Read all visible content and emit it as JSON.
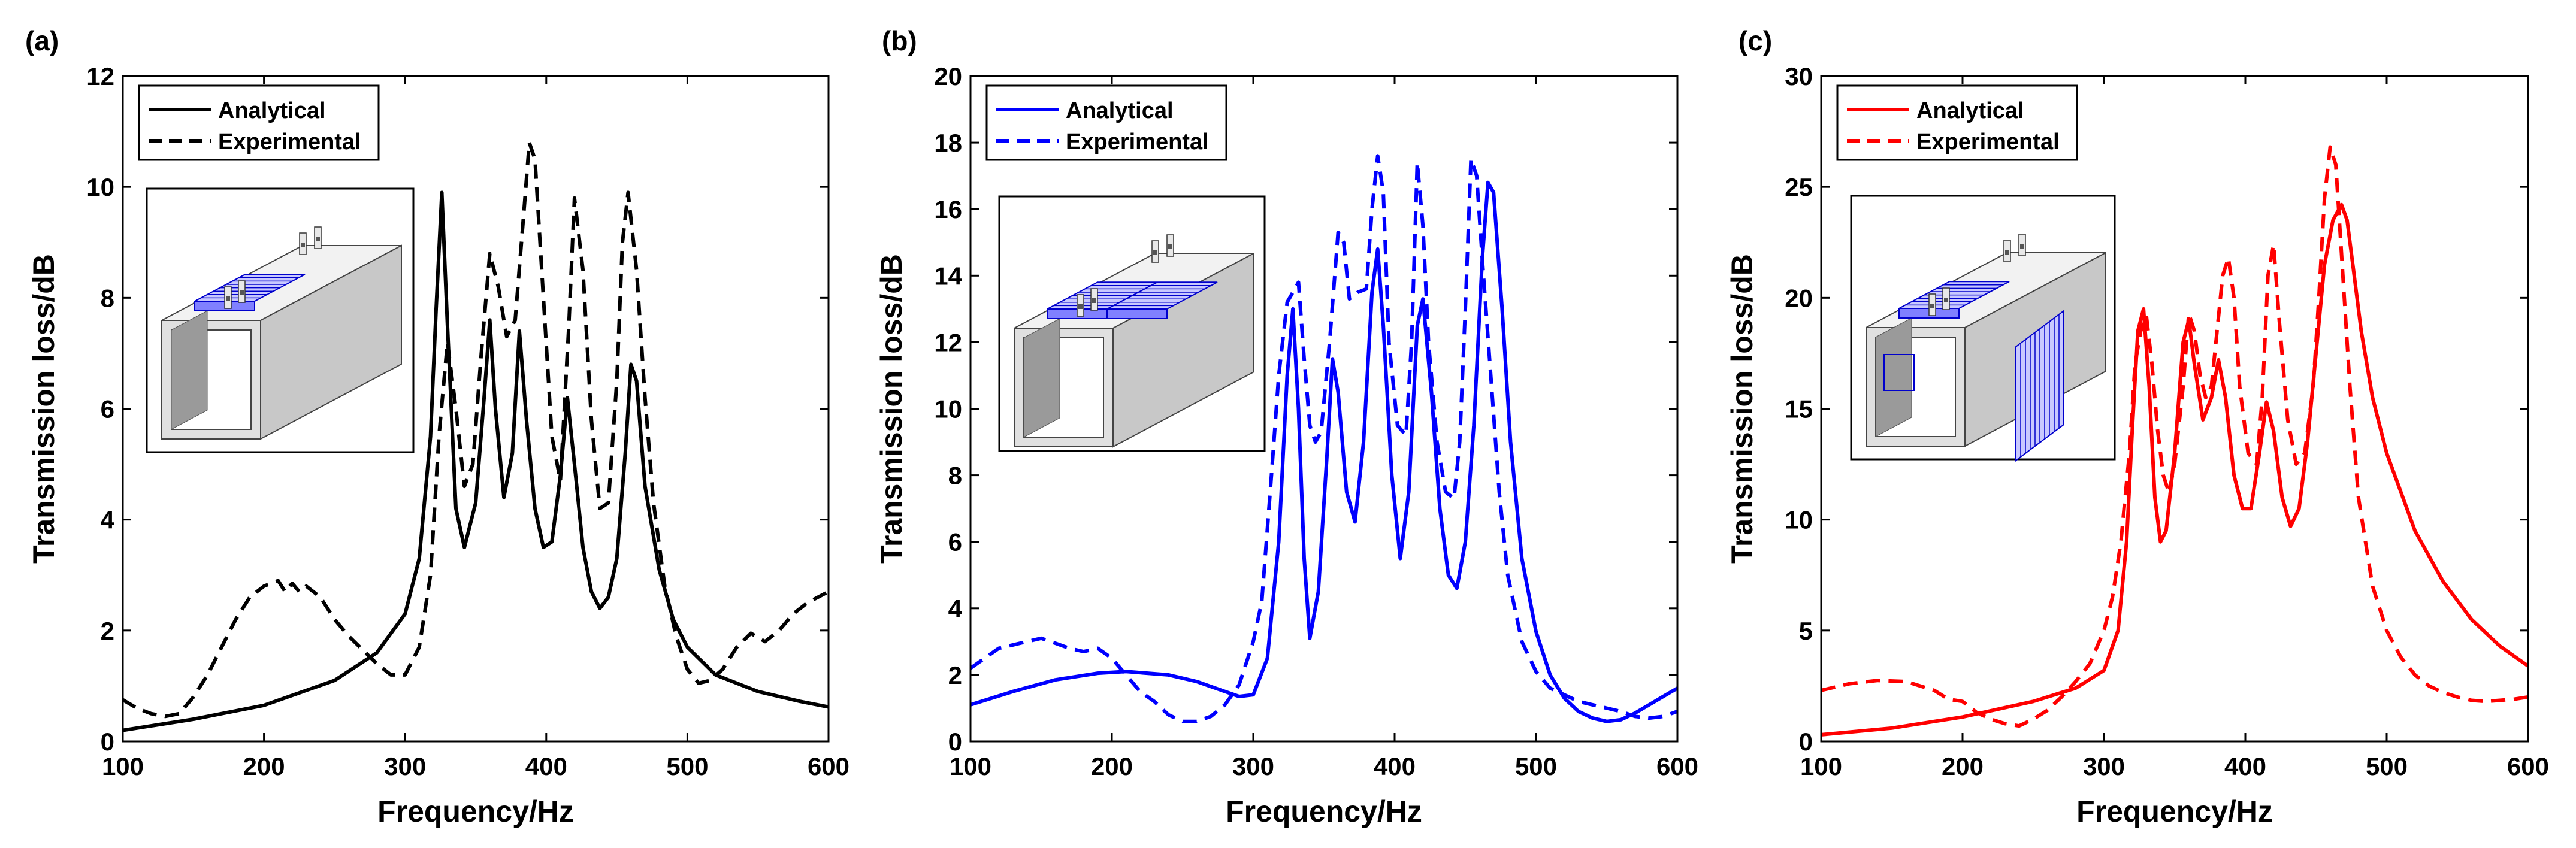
{
  "figure": {
    "panels": [
      "(a)",
      "(b)",
      "(c)"
    ]
  },
  "chart_data": [
    {
      "type": "line",
      "panel_label": "(a)",
      "color": "#000000",
      "xlabel": "Frequency/Hz",
      "ylabel": "Transmission loss/dB",
      "xlim": [
        100,
        600
      ],
      "ylim": [
        0,
        12
      ],
      "xticks": [
        100,
        200,
        300,
        400,
        500,
        600
      ],
      "yticks": [
        0,
        2,
        4,
        6,
        8,
        10,
        12
      ],
      "legend": {
        "position": "top-left",
        "entries": [
          "Analytical",
          "Experimental"
        ]
      },
      "inset": "duct with one resonator panel on top",
      "series": [
        {
          "name": "Analytical",
          "style": "solid",
          "x": [
            100,
            150,
            200,
            250,
            280,
            300,
            310,
            318,
            322,
            326,
            330,
            336,
            342,
            350,
            356,
            360,
            364,
            370,
            376,
            381,
            386,
            392,
            398,
            404,
            410,
            415,
            420,
            426,
            432,
            438,
            444,
            450,
            456,
            460,
            464,
            470,
            480,
            490,
            500,
            520,
            550,
            580,
            600
          ],
          "y": [
            0.2,
            0.4,
            0.65,
            1.1,
            1.6,
            2.3,
            3.3,
            5.5,
            7.8,
            9.9,
            7.5,
            4.2,
            3.5,
            4.3,
            6.2,
            7.6,
            6.0,
            4.4,
            5.2,
            7.4,
            5.8,
            4.2,
            3.5,
            3.6,
            4.8,
            6.2,
            5.0,
            3.5,
            2.7,
            2.4,
            2.6,
            3.3,
            5.2,
            6.8,
            6.5,
            4.6,
            3.1,
            2.2,
            1.7,
            1.2,
            0.9,
            0.72,
            0.62
          ]
        },
        {
          "name": "Experimental",
          "style": "dashed",
          "x": [
            100,
            110,
            120,
            130,
            140,
            150,
            160,
            170,
            180,
            190,
            200,
            210,
            215,
            220,
            225,
            230,
            240,
            250,
            260,
            270,
            280,
            290,
            300,
            310,
            318,
            324,
            330,
            336,
            342,
            348,
            354,
            360,
            366,
            372,
            378,
            384,
            388,
            392,
            398,
            404,
            410,
            416,
            420,
            426,
            432,
            438,
            444,
            450,
            454,
            458,
            464,
            470,
            476,
            484,
            492,
            500,
            508,
            516,
            525,
            535,
            545,
            555,
            565,
            575,
            585,
            600
          ],
          "y": [
            0.75,
            0.6,
            0.5,
            0.45,
            0.5,
            0.8,
            1.2,
            1.7,
            2.2,
            2.6,
            2.8,
            2.9,
            2.7,
            2.85,
            2.7,
            2.8,
            2.6,
            2.2,
            1.9,
            1.65,
            1.4,
            1.2,
            1.2,
            1.7,
            3.0,
            5.5,
            7.2,
            6.0,
            4.6,
            5.0,
            7.0,
            8.8,
            8.2,
            7.3,
            7.6,
            9.5,
            10.8,
            10.5,
            8.0,
            5.5,
            4.7,
            7.5,
            9.8,
            8.5,
            5.8,
            4.2,
            4.3,
            6.5,
            9.0,
            9.9,
            8.5,
            6.2,
            4.3,
            2.8,
            1.9,
            1.3,
            1.05,
            1.1,
            1.3,
            1.7,
            1.95,
            1.8,
            2.0,
            2.3,
            2.5,
            2.7
          ]
        }
      ]
    },
    {
      "type": "line",
      "panel_label": "(b)",
      "color": "#0000ff",
      "xlabel": "Frequency/Hz",
      "ylabel": "Transmission loss/dB",
      "xlim": [
        100,
        600
      ],
      "ylim": [
        0,
        20
      ],
      "xticks": [
        100,
        200,
        300,
        400,
        500,
        600
      ],
      "yticks": [
        0,
        2,
        4,
        6,
        8,
        10,
        12,
        14,
        16,
        18,
        20
      ],
      "legend": {
        "position": "top-left",
        "entries": [
          "Analytical",
          "Experimental"
        ]
      },
      "inset": "duct with two resonator panels on top",
      "series": [
        {
          "name": "Analytical",
          "style": "solid",
          "x": [
            100,
            130,
            160,
            190,
            210,
            240,
            260,
            280,
            290,
            300,
            310,
            318,
            324,
            328,
            332,
            336,
            340,
            346,
            352,
            356,
            360,
            366,
            372,
            378,
            384,
            388,
            392,
            398,
            404,
            410,
            416,
            420,
            426,
            432,
            438,
            444,
            450,
            456,
            462,
            466,
            470,
            476,
            482,
            490,
            500,
            510,
            520,
            530,
            540,
            550,
            560,
            570,
            580,
            590,
            600
          ],
          "y": [
            1.1,
            1.5,
            1.85,
            2.05,
            2.1,
            2.0,
            1.8,
            1.5,
            1.35,
            1.4,
            2.5,
            6.0,
            11.0,
            13.0,
            10.0,
            5.5,
            3.1,
            4.5,
            8.5,
            11.5,
            10.5,
            7.5,
            6.6,
            9.0,
            13.5,
            14.8,
            12.5,
            8.0,
            5.5,
            7.5,
            12.5,
            13.3,
            10.5,
            7.0,
            5.0,
            4.6,
            6.0,
            9.5,
            14.5,
            16.8,
            16.5,
            13.0,
            9.0,
            5.5,
            3.3,
            2.0,
            1.3,
            0.9,
            0.7,
            0.6,
            0.65,
            0.85,
            1.1,
            1.35,
            1.6
          ]
        },
        {
          "name": "Experimental",
          "style": "dashed",
          "x": [
            100,
            110,
            120,
            130,
            140,
            150,
            160,
            170,
            180,
            190,
            200,
            210,
            220,
            230,
            240,
            250,
            260,
            270,
            280,
            290,
            300,
            306,
            312,
            318,
            324,
            328,
            332,
            336,
            340,
            344,
            348,
            354,
            360,
            364,
            368,
            374,
            380,
            384,
            388,
            392,
            396,
            402,
            408,
            412,
            416,
            420,
            424,
            430,
            436,
            442,
            446,
            450,
            454,
            458,
            462,
            468,
            474,
            480,
            490,
            500,
            510,
            520,
            530,
            540,
            550,
            560,
            570,
            580,
            590,
            600
          ],
          "y": [
            2.2,
            2.5,
            2.8,
            2.9,
            3.0,
            3.1,
            2.95,
            2.8,
            2.7,
            2.8,
            2.5,
            2.0,
            1.5,
            1.2,
            0.8,
            0.6,
            0.6,
            0.75,
            1.1,
            1.7,
            3.0,
            4.2,
            7.5,
            11.0,
            13.2,
            13.5,
            13.8,
            11.5,
            9.5,
            9.0,
            9.3,
            12.0,
            15.3,
            15.0,
            13.3,
            13.5,
            13.6,
            16.0,
            17.6,
            16.5,
            12.0,
            9.5,
            9.2,
            12.0,
            17.4,
            15.5,
            12.0,
            9.0,
            7.5,
            7.3,
            9.0,
            13.0,
            17.5,
            17.0,
            14.5,
            11.0,
            7.5,
            5.0,
            3.0,
            2.1,
            1.6,
            1.4,
            1.2,
            1.1,
            1.0,
            0.9,
            0.75,
            0.7,
            0.75,
            0.9
          ]
        }
      ]
    },
    {
      "type": "line",
      "panel_label": "(c)",
      "color": "#ff0000",
      "xlabel": "Frequency/Hz",
      "ylabel": "Transmission loss/dB",
      "xlim": [
        100,
        600
      ],
      "ylim": [
        0,
        30
      ],
      "xticks": [
        100,
        200,
        300,
        400,
        500,
        600
      ],
      "yticks": [
        0,
        5,
        10,
        15,
        20,
        25,
        30
      ],
      "legend": {
        "position": "top-left",
        "entries": [
          "Analytical",
          "Experimental"
        ]
      },
      "inset": "duct with resonator panel on top and side resonator blocks",
      "series": [
        {
          "name": "Analytical",
          "style": "solid",
          "x": [
            100,
            150,
            200,
            250,
            280,
            300,
            310,
            316,
            320,
            324,
            328,
            332,
            336,
            340,
            344,
            350,
            356,
            360,
            364,
            370,
            376,
            381,
            386,
            392,
            398,
            404,
            410,
            415,
            420,
            426,
            432,
            438,
            444,
            450,
            456,
            462,
            468,
            472,
            476,
            482,
            490,
            500,
            520,
            540,
            560,
            580,
            600
          ],
          "y": [
            0.3,
            0.6,
            1.1,
            1.8,
            2.4,
            3.2,
            5.0,
            9.0,
            14.0,
            18.5,
            19.5,
            16.0,
            11.0,
            9.0,
            9.5,
            13.0,
            18.0,
            19.0,
            17.0,
            14.5,
            15.5,
            17.2,
            15.5,
            12.0,
            10.5,
            10.5,
            13.0,
            15.3,
            14.0,
            11.0,
            9.7,
            10.5,
            13.5,
            17.5,
            21.5,
            23.5,
            24.2,
            23.5,
            21.5,
            18.5,
            15.5,
            13.0,
            9.5,
            7.2,
            5.5,
            4.3,
            3.4
          ]
        },
        {
          "name": "Experimental",
          "style": "dashed",
          "x": [
            100,
            120,
            140,
            160,
            180,
            190,
            200,
            210,
            220,
            230,
            240,
            250,
            260,
            270,
            280,
            290,
            300,
            306,
            312,
            318,
            322,
            326,
            330,
            334,
            338,
            342,
            346,
            350,
            356,
            360,
            364,
            368,
            372,
            376,
            380,
            384,
            388,
            392,
            396,
            402,
            408,
            412,
            416,
            420,
            424,
            430,
            436,
            442,
            448,
            452,
            456,
            460,
            464,
            468,
            474,
            480,
            490,
            500,
            510,
            520,
            530,
            540,
            550,
            560,
            570,
            580,
            590,
            600
          ],
          "y": [
            2.3,
            2.6,
            2.75,
            2.7,
            2.3,
            1.9,
            1.8,
            1.3,
            1.0,
            0.8,
            0.7,
            1.0,
            1.4,
            2.0,
            2.7,
            3.5,
            5.0,
            6.5,
            9.0,
            13.0,
            17.0,
            18.5,
            19.2,
            17.0,
            14.0,
            12.0,
            11.2,
            12.5,
            16.0,
            19.3,
            18.5,
            16.5,
            15.5,
            16.0,
            18.5,
            21.0,
            21.8,
            20.0,
            16.0,
            13.0,
            12.5,
            15.5,
            21.0,
            22.4,
            19.0,
            14.5,
            12.5,
            13.0,
            16.0,
            20.0,
            24.5,
            26.8,
            26.0,
            22.0,
            16.0,
            11.0,
            7.0,
            5.0,
            3.8,
            3.0,
            2.5,
            2.2,
            2.0,
            1.85,
            1.8,
            1.85,
            1.9,
            2.0
          ]
        }
      ]
    }
  ]
}
